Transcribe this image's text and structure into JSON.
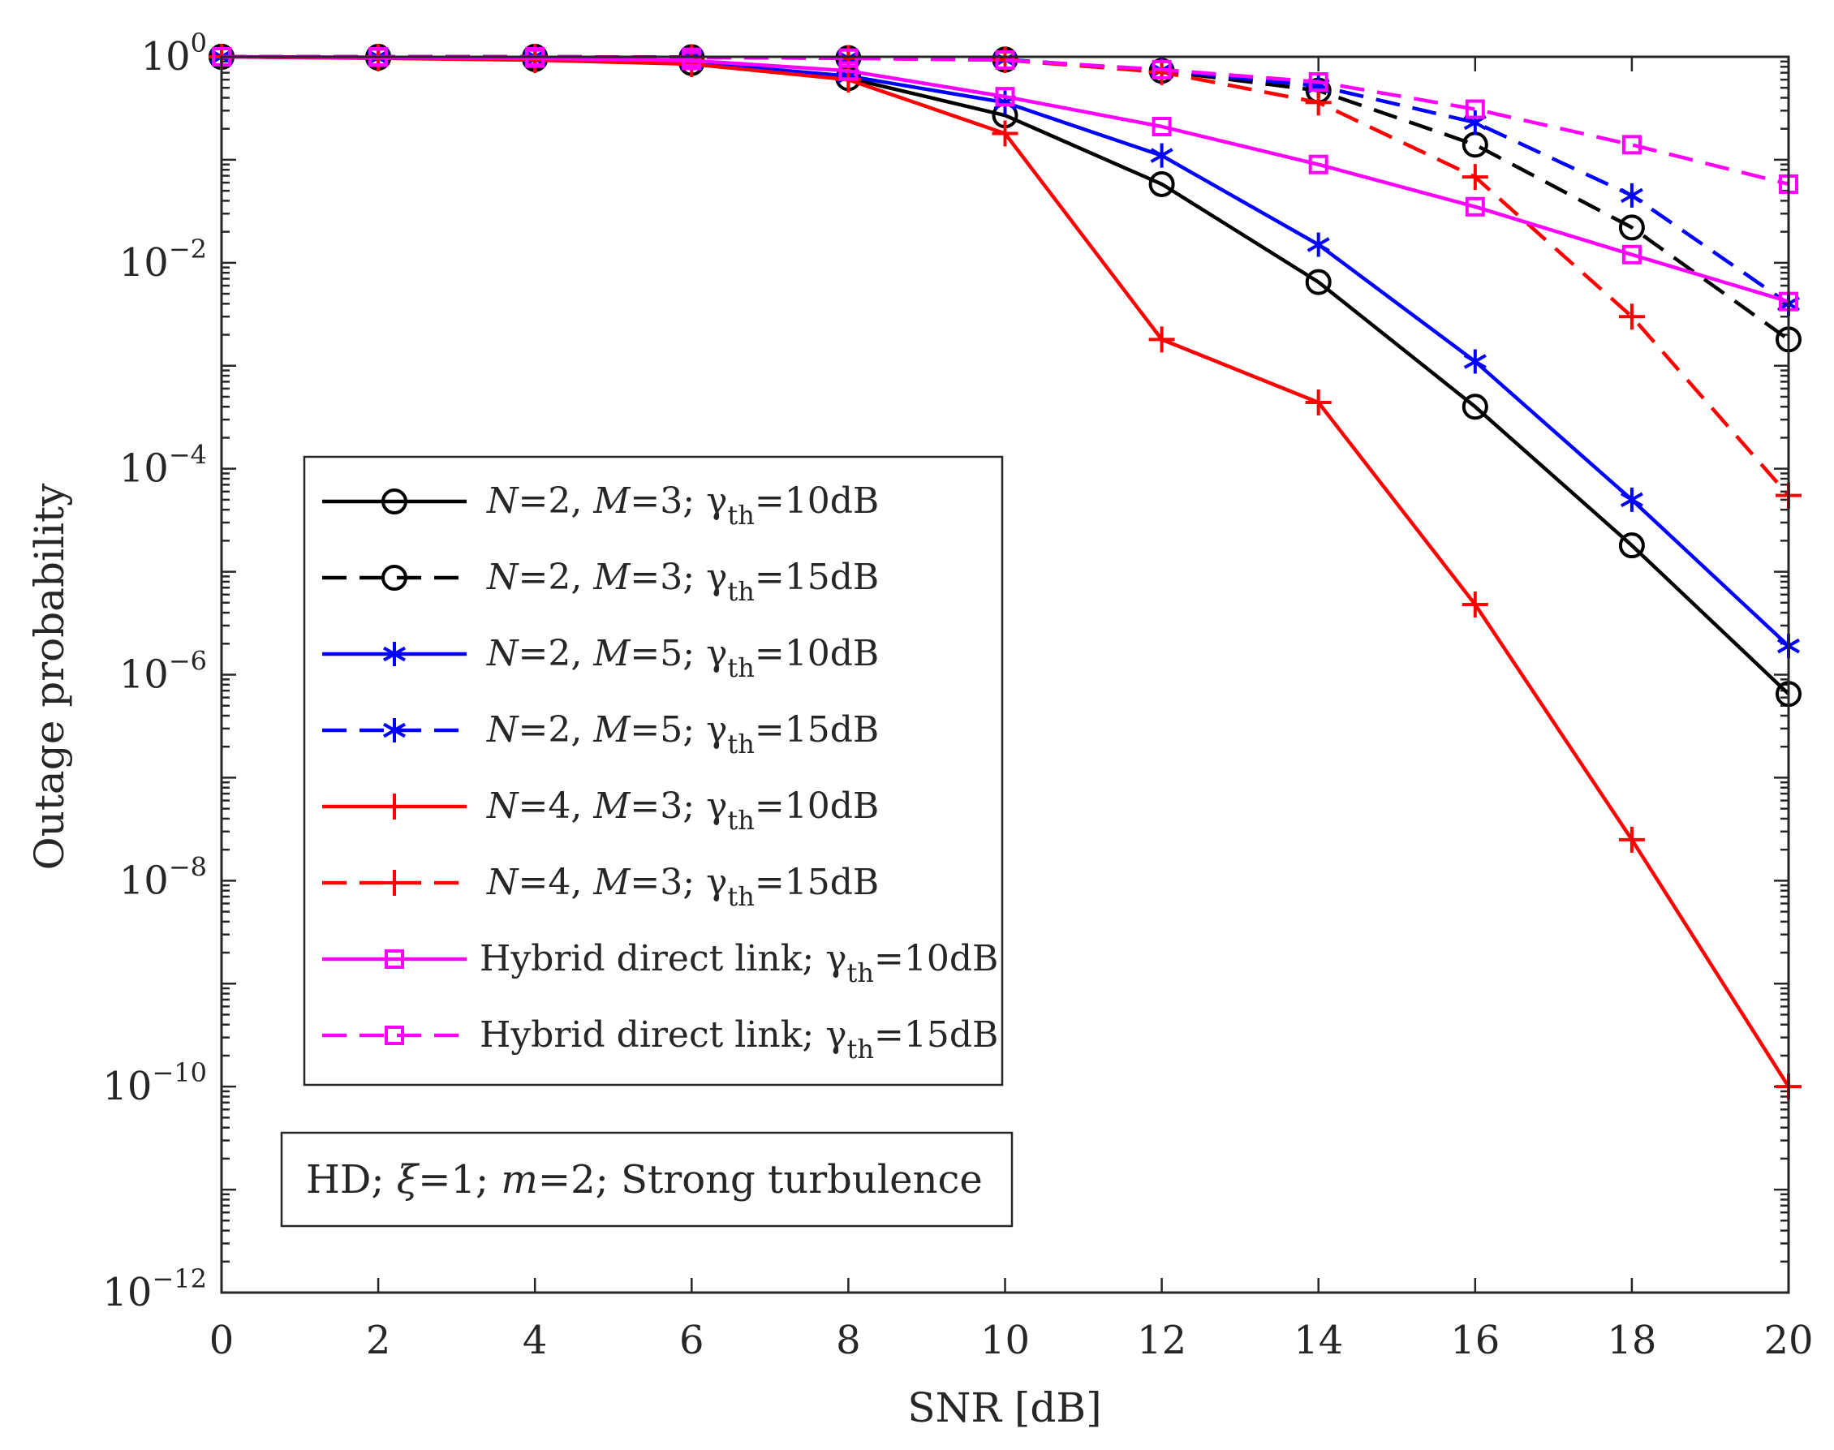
{
  "chart_data": {
    "type": "line",
    "xlabel": "SNR [dB]",
    "ylabel": "Outage probability",
    "yscale": "log",
    "xlim": [
      0,
      20
    ],
    "ylim_exponent": [
      -12,
      0
    ],
    "grid": false,
    "x": [
      0,
      2,
      4,
      6,
      8,
      10,
      12,
      14,
      16,
      18,
      20
    ],
    "x_tick_labels": [
      "0",
      "2",
      "4",
      "6",
      "8",
      "10",
      "12",
      "14",
      "16",
      "18",
      "20"
    ],
    "y_ticks": [
      {
        "base": "10",
        "exp": "0",
        "value_exp": 0
      },
      {
        "base": "10",
        "exp": "−2",
        "value_exp": -2
      },
      {
        "base": "10",
        "exp": "−4",
        "value_exp": -4
      },
      {
        "base": "10",
        "exp": "−6",
        "value_exp": -6
      },
      {
        "base": "10",
        "exp": "−8",
        "value_exp": -8
      },
      {
        "base": "10",
        "exp": "−10",
        "value_exp": -10
      },
      {
        "base": "10",
        "exp": "−12",
        "value_exp": -12
      }
    ],
    "series": [
      {
        "id": "n2m3-10",
        "color": "#000000",
        "dash": "solid",
        "marker": "circle",
        "legend": {
          "pre": "",
          "N": "N",
          "eq1": "=2,  ",
          "M": "M",
          "eq2": "=3; ",
          "gamma": "γ",
          "sub": "th",
          "post": "=10dB"
        },
        "values": [
          1.0,
          0.98,
          0.95,
          0.87,
          0.62,
          0.27,
          0.058,
          0.0065,
          0.0004,
          1.8e-05,
          6.5e-07
        ]
      },
      {
        "id": "n2m3-15",
        "color": "#000000",
        "dash": "dashed",
        "marker": "circle",
        "legend": {
          "pre": "",
          "N": "N",
          "eq1": "=2,  ",
          "M": "M",
          "eq2": "=3; ",
          "gamma": "γ",
          "sub": "th",
          "post": "=15dB"
        },
        "values": [
          1.0,
          1.0,
          1.0,
          0.99,
          0.97,
          0.94,
          0.73,
          0.47,
          0.14,
          0.022,
          0.0018
        ]
      },
      {
        "id": "n2m5-10",
        "color": "#0000ff",
        "dash": "solid",
        "marker": "asterisk",
        "legend": {
          "pre": "",
          "N": "N",
          "eq1": "=2,  ",
          "M": "M",
          "eq2": "=5; ",
          "gamma": "γ",
          "sub": "th",
          "post": "=10dB"
        },
        "values": [
          1.0,
          0.98,
          0.95,
          0.88,
          0.65,
          0.36,
          0.11,
          0.015,
          0.0011,
          5e-05,
          1.9e-06
        ]
      },
      {
        "id": "n2m5-15",
        "color": "#0000ff",
        "dash": "dashed",
        "marker": "asterisk",
        "legend": {
          "pre": "",
          "N": "N",
          "eq1": "=2,  ",
          "M": "M",
          "eq2": "=5; ",
          "gamma": "γ",
          "sub": "th",
          "post": "=15dB"
        },
        "values": [
          1.0,
          1.0,
          1.0,
          0.99,
          0.97,
          0.94,
          0.74,
          0.52,
          0.23,
          0.045,
          0.004
        ]
      },
      {
        "id": "n4m3-10",
        "color": "#ff0000",
        "dash": "solid",
        "marker": "plus",
        "legend": {
          "pre": "",
          "N": "N",
          "eq1": "=4,  ",
          "M": "M",
          "eq2": "=3; ",
          "gamma": "γ",
          "sub": "th",
          "post": "=10dB"
        },
        "values": [
          1.0,
          0.97,
          0.93,
          0.85,
          0.6,
          0.18,
          0.0018,
          0.00044,
          4.8e-06,
          2.5e-08,
          1e-10
        ]
      },
      {
        "id": "n4m3-15",
        "color": "#ff0000",
        "dash": "dashed",
        "marker": "plus",
        "legend": {
          "pre": "",
          "N": "N",
          "eq1": "=4,  ",
          "M": "M",
          "eq2": "=3; ",
          "gamma": "γ",
          "sub": "th",
          "post": "=15dB"
        },
        "values": [
          1.0,
          1.0,
          1.0,
          0.99,
          0.97,
          0.93,
          0.71,
          0.36,
          0.068,
          0.003,
          5.5e-05
        ]
      },
      {
        "id": "hyb-10",
        "color": "#ff00ff",
        "dash": "solid",
        "marker": "square",
        "legend": {
          "pre": "Hybrid direct link; ",
          "N": "",
          "eq1": "",
          "M": "",
          "eq2": "",
          "gamma": "γ",
          "sub": "th",
          "post": "=10dB"
        },
        "values": [
          1.0,
          0.99,
          0.97,
          0.92,
          0.73,
          0.41,
          0.21,
          0.09,
          0.035,
          0.012,
          0.0042
        ]
      },
      {
        "id": "hyb-15",
        "color": "#ff00ff",
        "dash": "dashed",
        "marker": "square",
        "legend": {
          "pre": "Hybrid direct link; ",
          "N": "",
          "eq1": "",
          "M": "",
          "eq2": "",
          "gamma": "γ",
          "sub": "th",
          "post": "=15dB"
        },
        "values": [
          1.0,
          1.0,
          1.0,
          0.99,
          0.97,
          0.93,
          0.75,
          0.57,
          0.31,
          0.14,
          0.058
        ]
      }
    ],
    "annotation": {
      "pre": "HD; ",
      "xi": "ξ",
      "mid": "=1; ",
      "m": "m",
      "post": "=2; Strong turbulence"
    }
  }
}
